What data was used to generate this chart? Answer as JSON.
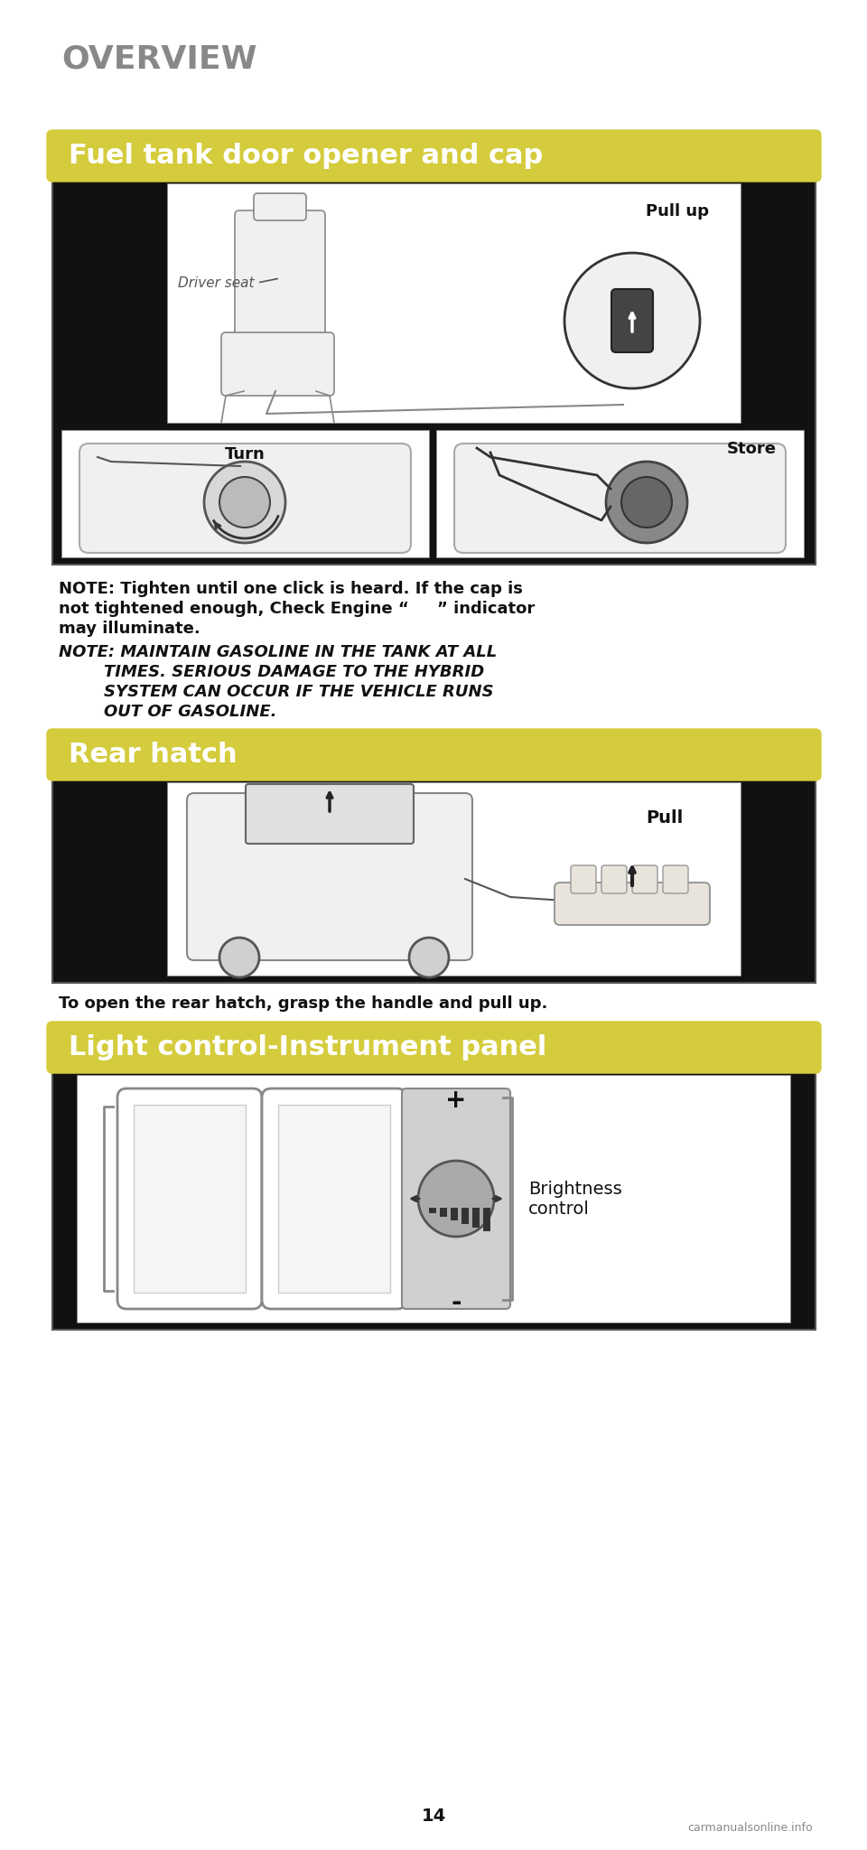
{
  "page_bg": "#ffffff",
  "header_text": "OVERVIEW",
  "header_color": "#888888",
  "header_fontsize": 26,
  "section_label_bg": "#d4cc3c",
  "section_label_color": "#ffffff",
  "section1_title": "Fuel tank door opener and cap",
  "section2_title": "Rear hatch",
  "section3_title": "Light control-Instrument panel",
  "image_panel_bg": "#111111",
  "image_panel_border": "#555555",
  "note1_line1": "NOTE: Tighten until one click is heard. If the cap is",
  "note1_line2": "not tightened enough, Check Engine “     ” indicator",
  "note1_line3": "may illuminate.",
  "note2_line1": "NOTE: MAINTAIN GASOLINE IN THE TANK AT ALL",
  "note2_line2": "        TIMES. SERIOUS DAMAGE TO THE HYBRID",
  "note2_line3": "        SYSTEM CAN OCCUR IF THE VEHICLE RUNS",
  "note2_line4": "        OUT OF GASOLINE.",
  "note_color": "#111111",
  "note_fontsize": 13,
  "rear_hatch_caption": "To open the rear hatch, grasp the handle and pull up.",
  "caption_color": "#111111",
  "caption_fontsize": 13,
  "page_number": "14",
  "page_num_color": "#111111",
  "page_num_fontsize": 14,
  "pull_up_label": "Pull up",
  "driver_seat_label": "Driver seat",
  "turn_label": "Turn",
  "store_label": "Store",
  "pull_label": "Pull",
  "brightness_label": "Brightness\ncontrol",
  "plus_label": "+",
  "minus_label": "-",
  "img_bg_white": "#ffffff",
  "img_bg_black": "#111111",
  "sketch_line": "#555555",
  "sketch_fill": "#e0e0e0"
}
